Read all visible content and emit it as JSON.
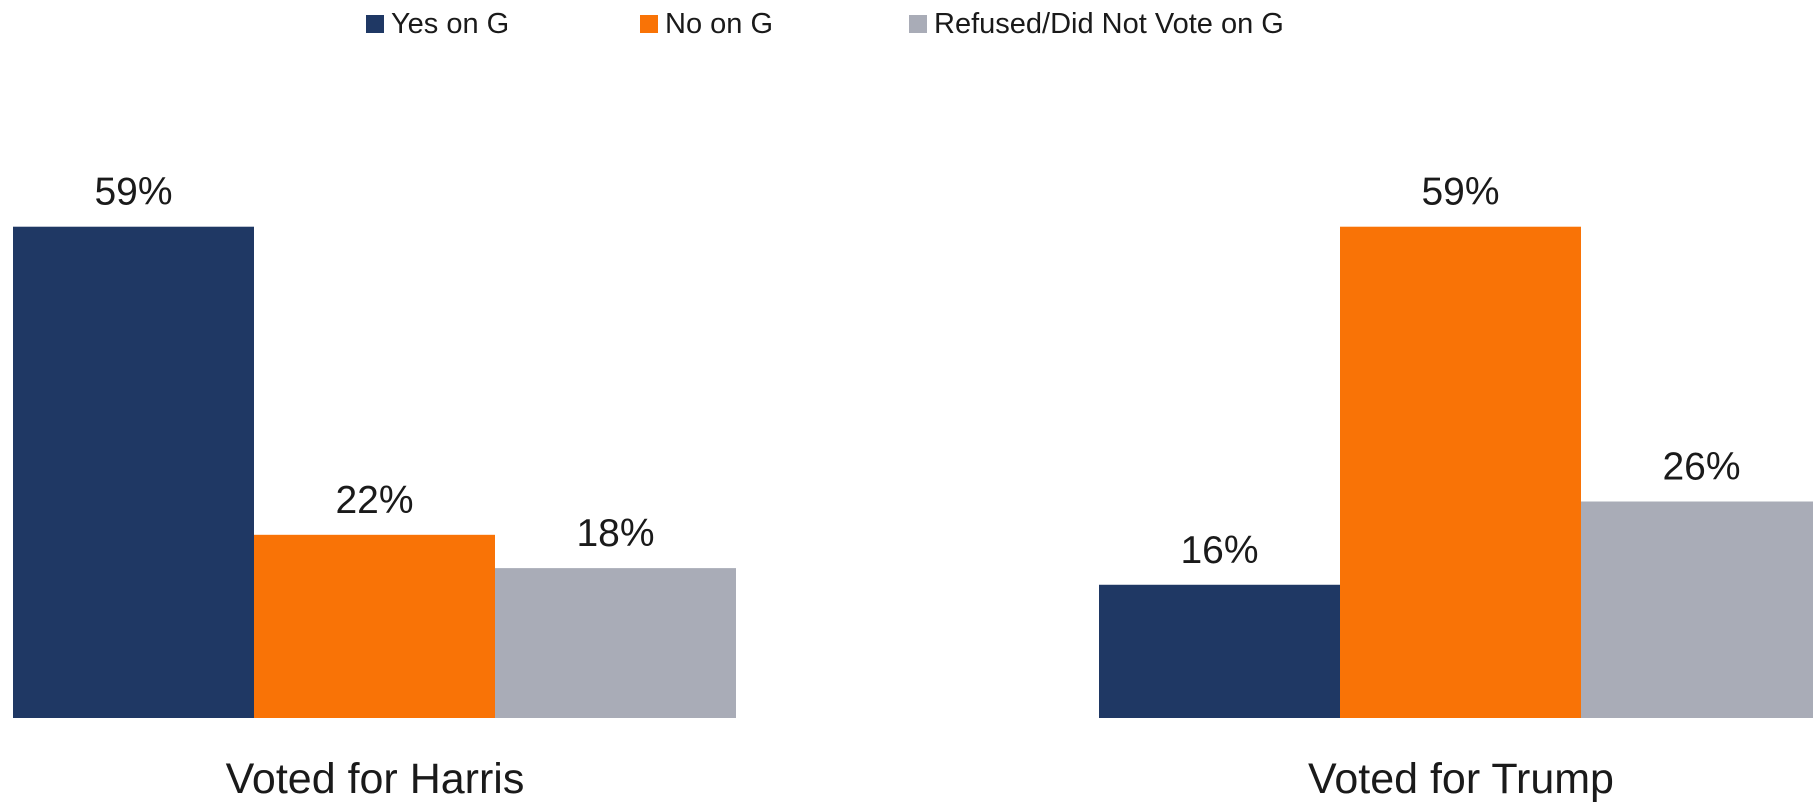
{
  "legend": [
    {
      "label": "Yes on G",
      "color": "#1f3864"
    },
    {
      "label": "No on G",
      "color": "#f97306"
    },
    {
      "label": "Refused/Did Not Vote on G",
      "color": "#a9acb7"
    }
  ],
  "chart_data": {
    "type": "bar",
    "categories": [
      "Voted for Harris",
      "Voted for Trump"
    ],
    "series": [
      {
        "name": "Yes on G",
        "values": [
          59,
          16
        ],
        "labels": [
          "59%",
          "16%"
        ],
        "color": "#1f3864"
      },
      {
        "name": "No on G",
        "values": [
          22,
          59
        ],
        "labels": [
          "22%",
          "59%"
        ],
        "color": "#f97306"
      },
      {
        "name": "Refused/Did Not Vote on G",
        "values": [
          18,
          26
        ],
        "labels": [
          "18%",
          "26%"
        ],
        "color": "#a9acb7"
      }
    ],
    "ylim": [
      0,
      60
    ],
    "grid": false,
    "legend_position": "top"
  }
}
